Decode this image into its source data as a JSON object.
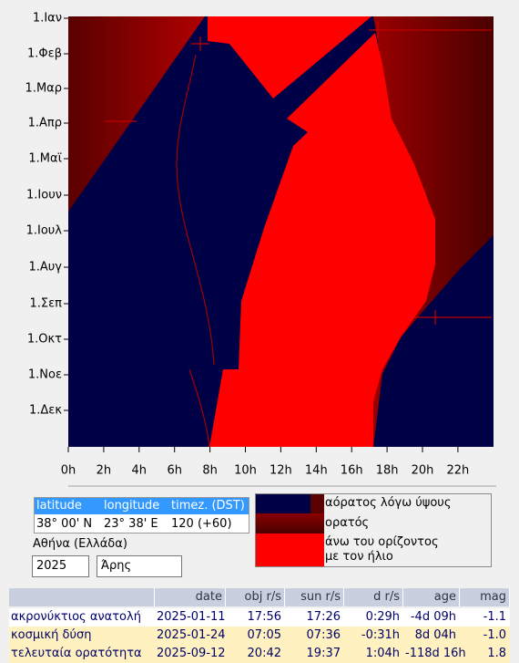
{
  "chart": {
    "months": [
      "1.Ιαν",
      "1.Φεβ",
      "1.Μαρ",
      "1.Απρ",
      "1.Μαϊ",
      "1.Ιουν",
      "1.Ιουλ",
      "1.Αυγ",
      "1.Σεπ",
      "1.Οκτ",
      "1.Νοε",
      "1.Δεκ"
    ],
    "hours": [
      "0h",
      "2h",
      "4h",
      "6h",
      "8h",
      "10h",
      "12h",
      "14h",
      "16h",
      "18h",
      "20h",
      "22h"
    ]
  },
  "location": {
    "headers": [
      "latitude",
      "longitude",
      "timez. (DST)"
    ],
    "values": [
      "38° 00' N",
      "23° 38' E",
      "120 (+60)"
    ],
    "place": "Αθήνα (Ελλάδα)",
    "year": "2025",
    "object": "Άρης"
  },
  "legend": {
    "items": [
      [
        "αόρατος λόγω ύψους"
      ],
      [
        "ορατός"
      ],
      [
        "άνω του ορίζοντος",
        "με τον ήλιο"
      ]
    ]
  },
  "events": {
    "headers": [
      "date",
      "obj r/s",
      "sun r/s",
      "d r/s",
      "age",
      "mag"
    ],
    "rows": [
      [
        "ακρονύκτιος ανατολή",
        "2025-01-11",
        "17:56",
        "17:26",
        "0:29h",
        "-4d 09h",
        "-1.1"
      ],
      [
        "κοσμική δύση",
        "2025-01-24",
        "07:05",
        "07:36",
        "-0:31h",
        "8d 04h",
        "-1.0"
      ],
      [
        "τελευταία ορατότητα",
        "2025-09-12",
        "20:42",
        "19:37",
        "1:04h",
        "-118d 16h",
        "1.8"
      ]
    ]
  }
}
